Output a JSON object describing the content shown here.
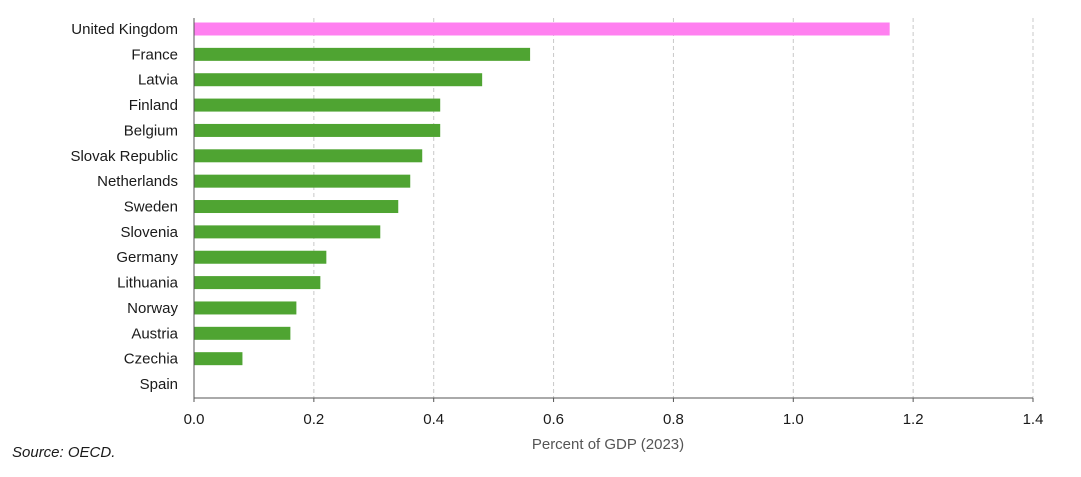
{
  "chart_data": {
    "type": "bar",
    "orientation": "horizontal",
    "categories": [
      "United Kingdom",
      "France",
      "Latvia",
      "Finland",
      "Belgium",
      "Slovak Republic",
      "Netherlands",
      "Sweden",
      "Slovenia",
      "Germany",
      "Lithuania",
      "Norway",
      "Austria",
      "Czechia",
      "Spain"
    ],
    "values": [
      1.16,
      0.56,
      0.48,
      0.41,
      0.41,
      0.38,
      0.36,
      0.34,
      0.31,
      0.22,
      0.21,
      0.17,
      0.16,
      0.08,
      0.0
    ],
    "bar_colors": [
      "#ff80f0",
      "#4fa432",
      "#4fa432",
      "#4fa432",
      "#4fa432",
      "#4fa432",
      "#4fa432",
      "#4fa432",
      "#4fa432",
      "#4fa432",
      "#4fa432",
      "#4fa432",
      "#4fa432",
      "#4fa432",
      "#4fa432"
    ],
    "xlabel": "Percent of GDP (2023)",
    "ylabel": "",
    "xlim": [
      0,
      1.4
    ],
    "xticks": [
      0.0,
      0.2,
      0.4,
      0.6,
      0.8,
      1.0,
      1.2,
      1.4
    ],
    "xtick_labels": [
      "0.0",
      "0.2",
      "0.4",
      "0.6",
      "0.8",
      "1.0",
      "1.2",
      "1.4"
    ],
    "grid": "vertical dashed",
    "legend": "none"
  },
  "source": "Source: OECD."
}
